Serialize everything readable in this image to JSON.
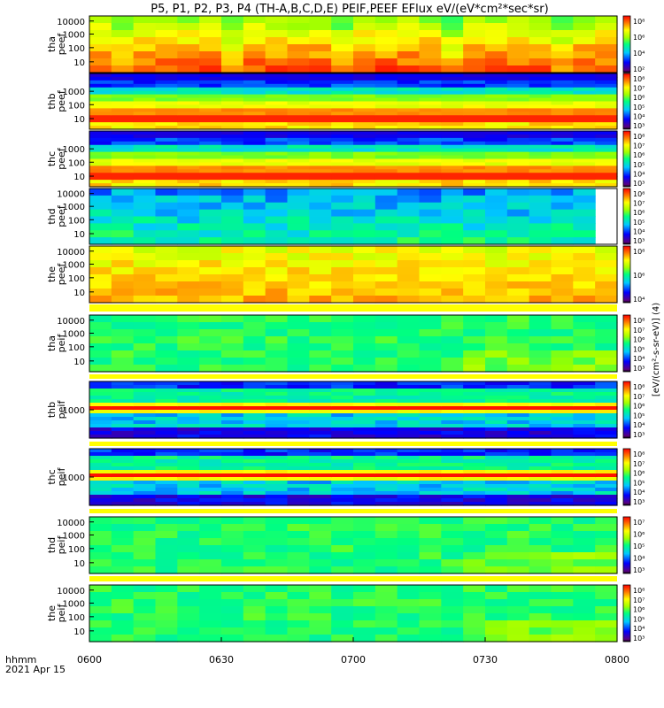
{
  "title": "P5, P1, P2, P3, P4 (TH-A,B,C,D,E) PEIF,PEEF EFlux eV/(eV*cm²*sec*sr)",
  "x_axis": {
    "label_line1": "hhmm",
    "label_line2": "2021 Apr 15",
    "ticks": [
      "0600",
      "0630",
      "0700",
      "0730",
      "0800"
    ]
  },
  "colorbar_label": "[eV/(cm²-s-sr-eV)] (4)",
  "chart_data": [
    {
      "type": "heatmap",
      "probe": "tha",
      "product": "peef",
      "ylabel_1": "tha",
      "ylabel_2": "peef",
      "y_scale": "log",
      "y_ticks": [
        "10000",
        "1000",
        "100",
        "10"
      ],
      "cbar_ticks": [
        "10⁸",
        "10⁶",
        "10⁴",
        "10²"
      ],
      "palette": "warm"
    },
    {
      "type": "heatmap",
      "probe": "thb",
      "product": "peef",
      "ylabel_1": "thb",
      "ylabel_2": "peef",
      "y_scale": "log",
      "y_ticks": [
        "1000",
        "100",
        "10"
      ],
      "cbar_ticks": [
        "10⁸",
        "10⁷",
        "10⁶",
        "10⁵",
        "10⁴",
        "10³"
      ],
      "palette": "banded"
    },
    {
      "type": "heatmap",
      "probe": "thc",
      "product": "peef",
      "ylabel_1": "thc",
      "ylabel_2": "peef",
      "y_scale": "log",
      "y_ticks": [
        "1000",
        "100",
        "10"
      ],
      "cbar_ticks": [
        "10⁸",
        "10⁷",
        "10⁶",
        "10⁵",
        "10⁴",
        "10³"
      ],
      "palette": "banded"
    },
    {
      "type": "heatmap",
      "probe": "thd",
      "product": "peef",
      "ylabel_1": "thd",
      "ylabel_2": "peef",
      "y_scale": "log",
      "y_ticks": [
        "10000",
        "1000",
        "100",
        "10"
      ],
      "cbar_ticks": [
        "10⁸",
        "10⁷",
        "10⁶",
        "10⁵",
        "10⁴",
        "10³"
      ],
      "palette": "cool"
    },
    {
      "type": "heatmap",
      "probe": "the",
      "product": "peef",
      "ylabel_1": "the",
      "ylabel_2": "peef",
      "y_scale": "log",
      "y_ticks": [
        "10000",
        "1000",
        "100",
        "10"
      ],
      "cbar_ticks": [
        "10⁸",
        "10⁶",
        "10⁴"
      ],
      "palette": "warm2"
    },
    {
      "type": "heatmap",
      "probe": "tha",
      "product": "peif",
      "ylabel_1": "tha",
      "ylabel_2": "peif",
      "y_scale": "log",
      "y_ticks": [
        "10000",
        "1000",
        "100",
        "10"
      ],
      "cbar_ticks": [
        "10⁸",
        "10⁷",
        "10⁶",
        "10⁵",
        "10⁴",
        "10³"
      ],
      "palette": "green"
    },
    {
      "type": "heatmap",
      "probe": "thb",
      "product": "peif",
      "ylabel_1": "thb",
      "ylabel_2": "peif",
      "y_scale": "log",
      "y_ticks": [
        "1000"
      ],
      "cbar_ticks": [
        "10⁸",
        "10⁷",
        "10⁶",
        "10⁵",
        "10⁴",
        "10³"
      ],
      "palette": "ion"
    },
    {
      "type": "heatmap",
      "probe": "thc",
      "product": "peif",
      "ylabel_1": "thc",
      "ylabel_2": "peif",
      "y_scale": "log",
      "y_ticks": [
        "1000"
      ],
      "cbar_ticks": [
        "10⁸",
        "10⁷",
        "10⁶",
        "10⁵",
        "10⁴",
        "10³"
      ],
      "palette": "ion"
    },
    {
      "type": "heatmap",
      "probe": "thd",
      "product": "peif",
      "ylabel_1": "thd",
      "ylabel_2": "peif",
      "y_scale": "log",
      "y_ticks": [
        "10000",
        "1000",
        "100",
        "10"
      ],
      "cbar_ticks": [
        "10⁷",
        "10⁶",
        "10⁵",
        "10⁴",
        "10³"
      ],
      "palette": "green"
    },
    {
      "type": "heatmap",
      "probe": "the",
      "product": "peif",
      "ylabel_1": "the",
      "ylabel_2": "peif",
      "y_scale": "log",
      "y_ticks": [
        "10000",
        "1000",
        "100",
        "10"
      ],
      "cbar_ticks": [
        "10⁸",
        "10⁷",
        "10⁶",
        "10⁵",
        "10⁴",
        "10³"
      ],
      "palette": "green"
    }
  ]
}
